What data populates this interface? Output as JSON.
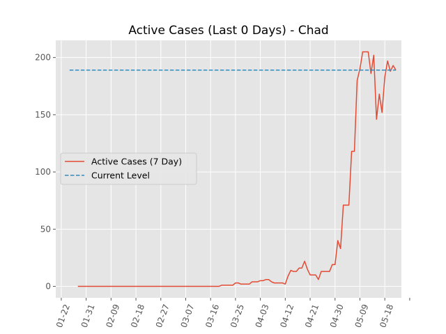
{
  "chart_data": {
    "type": "line",
    "title": "Active Cases (Last 0 Days) - Chad",
    "xlabel": "",
    "ylabel": "",
    "x_ticks": [
      "01-22",
      "01-31",
      "02-09",
      "02-18",
      "02-27",
      "03-07",
      "03-16",
      "03-25",
      "04-03",
      "04-12",
      "04-21",
      "04-30",
      "05-09",
      "05-18"
    ],
    "y_ticks": [
      0,
      50,
      100,
      150,
      200
    ],
    "xlim": [
      "2020-01-20",
      "2020-05-24"
    ],
    "ylim": [
      -10,
      215
    ],
    "grid": true,
    "legend_position": "center-left",
    "series": [
      {
        "name": "Active Cases (7 Day)",
        "color": "#E24A33",
        "style": "solid",
        "points": [
          [
            "2020-01-28",
            0
          ],
          [
            "2020-02-10",
            0
          ],
          [
            "2020-02-25",
            0
          ],
          [
            "2020-03-10",
            0
          ],
          [
            "2020-03-19",
            0
          ],
          [
            "2020-03-20",
            1
          ],
          [
            "2020-03-24",
            1
          ],
          [
            "2020-03-25",
            3
          ],
          [
            "2020-03-26",
            3
          ],
          [
            "2020-03-27",
            2
          ],
          [
            "2020-03-30",
            2
          ],
          [
            "2020-03-31",
            4
          ],
          [
            "2020-04-02",
            4
          ],
          [
            "2020-04-03",
            5
          ],
          [
            "2020-04-04",
            5
          ],
          [
            "2020-04-05",
            6
          ],
          [
            "2020-04-06",
            6
          ],
          [
            "2020-04-07",
            4
          ],
          [
            "2020-04-08",
            3
          ],
          [
            "2020-04-11",
            3
          ],
          [
            "2020-04-12",
            2
          ],
          [
            "2020-04-13",
            9
          ],
          [
            "2020-04-14",
            14
          ],
          [
            "2020-04-15",
            13
          ],
          [
            "2020-04-16",
            13
          ],
          [
            "2020-04-17",
            16
          ],
          [
            "2020-04-18",
            16
          ],
          [
            "2020-04-19",
            22
          ],
          [
            "2020-04-20",
            15
          ],
          [
            "2020-04-21",
            10
          ],
          [
            "2020-04-23",
            10
          ],
          [
            "2020-04-24",
            6
          ],
          [
            "2020-04-25",
            13
          ],
          [
            "2020-04-28",
            13
          ],
          [
            "2020-04-29",
            19
          ],
          [
            "2020-04-30",
            19
          ],
          [
            "2020-05-01",
            40
          ],
          [
            "2020-05-02",
            33
          ],
          [
            "2020-05-03",
            71
          ],
          [
            "2020-05-05",
            71
          ],
          [
            "2020-05-06",
            118
          ],
          [
            "2020-05-07",
            118
          ],
          [
            "2020-05-08",
            180
          ],
          [
            "2020-05-09",
            190
          ],
          [
            "2020-05-10",
            205
          ],
          [
            "2020-05-12",
            205
          ],
          [
            "2020-05-13",
            186
          ],
          [
            "2020-05-14",
            202
          ],
          [
            "2020-05-15",
            146
          ],
          [
            "2020-05-16",
            168
          ],
          [
            "2020-05-17",
            152
          ],
          [
            "2020-05-18",
            183
          ],
          [
            "2020-05-19",
            197
          ],
          [
            "2020-05-20",
            188
          ],
          [
            "2020-05-21",
            193
          ],
          [
            "2020-05-22",
            189
          ]
        ]
      },
      {
        "name": "Current Level",
        "color": "#348ABD",
        "style": "dashed",
        "points": [
          [
            "2020-01-25",
            189
          ],
          [
            "2020-05-22",
            189
          ]
        ]
      }
    ]
  }
}
